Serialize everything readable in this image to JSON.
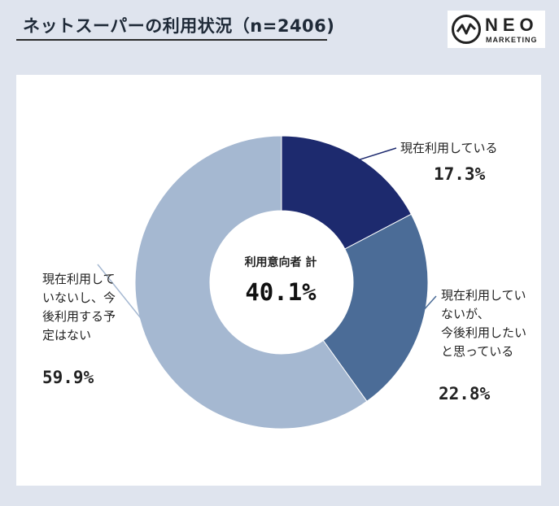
{
  "header": {
    "title": "ネットスーパーの利用状況（n=2406)"
  },
  "logo": {
    "name": "NEO",
    "subtitle": "MARKETING"
  },
  "chart_data": {
    "type": "pie",
    "title": "ネットスーパーの利用状況（n=2406)",
    "donut": true,
    "center_label": "利用意向者 計",
    "center_value": "40.1%",
    "slices": [
      {
        "label": "現在利用している",
        "value": 17.3,
        "display": "17.3%",
        "color": "#1d2a6e"
      },
      {
        "label": "現在利用していないが、今後利用したいと思っている",
        "value": 22.8,
        "display": "22.8%",
        "color": "#4b6c97"
      },
      {
        "label": "現在利用していないし、今後利用する予定はない",
        "value": 59.9,
        "display": "59.9%",
        "color": "#a5b8d1"
      }
    ]
  },
  "labels": {
    "s0": {
      "lines": [
        "現在利用している"
      ],
      "pct": "17.3%"
    },
    "s1": {
      "lines": [
        "現在利用してい",
        "ないが、",
        "今後利用したい",
        "と思っている"
      ],
      "pct": "22.8%"
    },
    "s2": {
      "lines": [
        "現在利用して",
        "いないし、今",
        "後利用する予",
        "定はない"
      ],
      "pct": "59.9%"
    }
  }
}
